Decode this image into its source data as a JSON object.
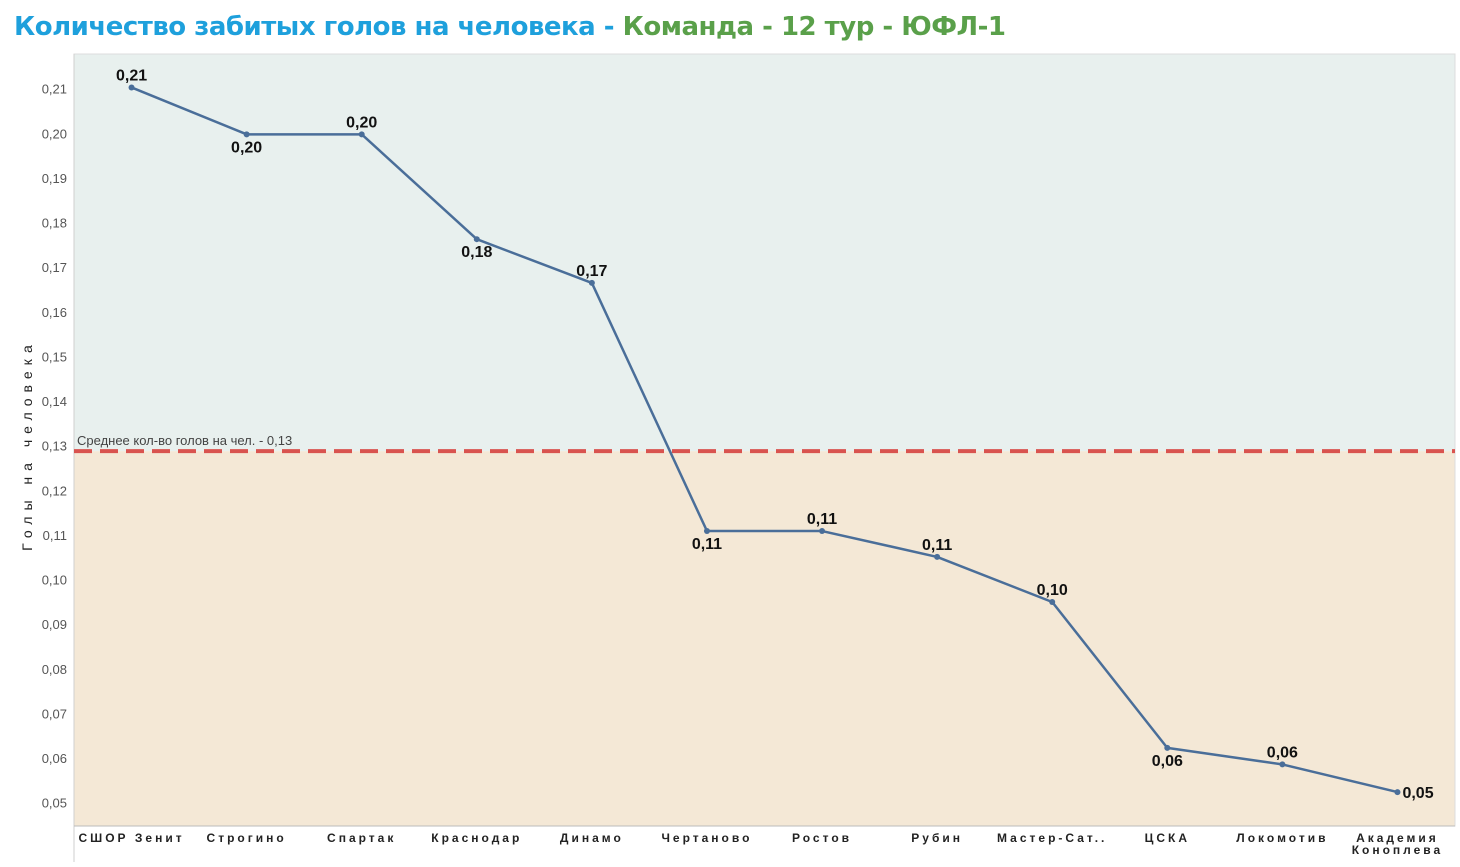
{
  "title": {
    "part1": "Количество забитых голов на человека - ",
    "part2": "Команда - 12 тур - ЮФЛ-1"
  },
  "colors": {
    "title_part1": "#1ea0dc",
    "title_part2": "#5aa04a",
    "line": "#4a6e99",
    "reference_line": "#d9534f",
    "band_above": "#e8f0ee",
    "band_below": "#f4e8d6"
  },
  "chart_data": {
    "type": "line",
    "ylabel": "Голы на человека",
    "ylim": [
      0.045,
      0.218
    ],
    "yticks": [
      "0,21",
      "0,20",
      "0,19",
      "0,18",
      "0,17",
      "0,16",
      "0,15",
      "0,14",
      "0,13",
      "0,12",
      "0,11",
      "0,10",
      "0,09",
      "0,08",
      "0,07",
      "0,06",
      "0,05"
    ],
    "ytick_values": [
      0.21,
      0.2,
      0.19,
      0.18,
      0.17,
      0.16,
      0.15,
      0.14,
      0.13,
      0.12,
      0.11,
      0.1,
      0.09,
      0.08,
      0.07,
      0.06,
      0.05
    ],
    "categories": [
      "СШОР Зенит",
      "Строгино",
      "Спартак",
      "Краснодар",
      "Динамо",
      "Чертаново",
      "Ростов",
      "Рубин",
      "Мастер-Сат..",
      "ЦСКА",
      "Локомотив",
      "Академия Коноплева"
    ],
    "values": [
      0.2105,
      0.2,
      0.2,
      0.1765,
      0.1667,
      0.1111,
      0.1111,
      0.1053,
      0.0952,
      0.0625,
      0.0588,
      0.0526
    ],
    "data_labels": [
      "0,21",
      "0,20",
      "0,20",
      "0,18",
      "0,17",
      "0,11",
      "0,11",
      "0,11",
      "0,10",
      "0,06",
      "0,06",
      "0,05"
    ],
    "label_position": [
      "above",
      "below",
      "above",
      "below",
      "above",
      "below",
      "above",
      "above",
      "above",
      "below",
      "above",
      "right"
    ],
    "reference_line": {
      "value": 0.129,
      "label": "Среднее кол-во голов на чел. - 0,13"
    },
    "grid": false
  }
}
